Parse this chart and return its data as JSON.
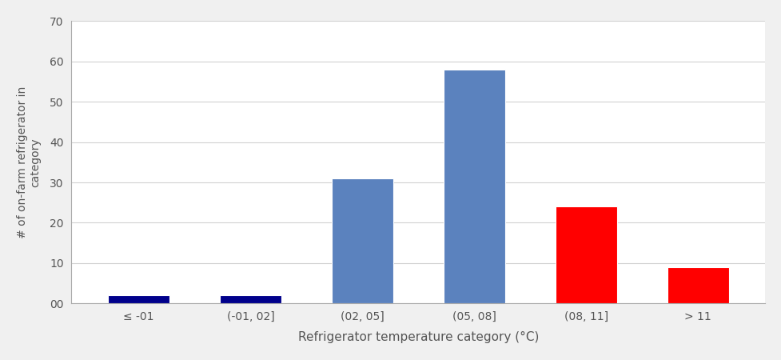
{
  "categories": [
    "≤ -01",
    "(-01, 02]",
    "(02, 05]",
    "(05, 08]",
    "(08, 11]",
    "> 11"
  ],
  "values": [
    2,
    2,
    31,
    58,
    24,
    9
  ],
  "bar_colors": [
    "#00008B",
    "#00008B",
    "#5B82BE",
    "#5B82BE",
    "#FF0000",
    "#FF0000"
  ],
  "xlabel": "Refrigerator temperature category (°C)",
  "ylabel": "# of on-farm refrigerator in\ncategory",
  "ylim": [
    0,
    70
  ],
  "yticks": [
    0,
    10,
    20,
    30,
    40,
    50,
    60,
    70
  ],
  "ytick_labels": [
    "00",
    "10",
    "20",
    "30",
    "40",
    "50",
    "60",
    "70"
  ],
  "bar_width": 0.55,
  "background_color": "#ffffff",
  "outer_bg": "#f0f0f0",
  "grid_color": "#d0d0d0",
  "xlabel_fontsize": 11,
  "ylabel_fontsize": 10,
  "tick_fontsize": 10,
  "spine_color": "#aaaaaa"
}
